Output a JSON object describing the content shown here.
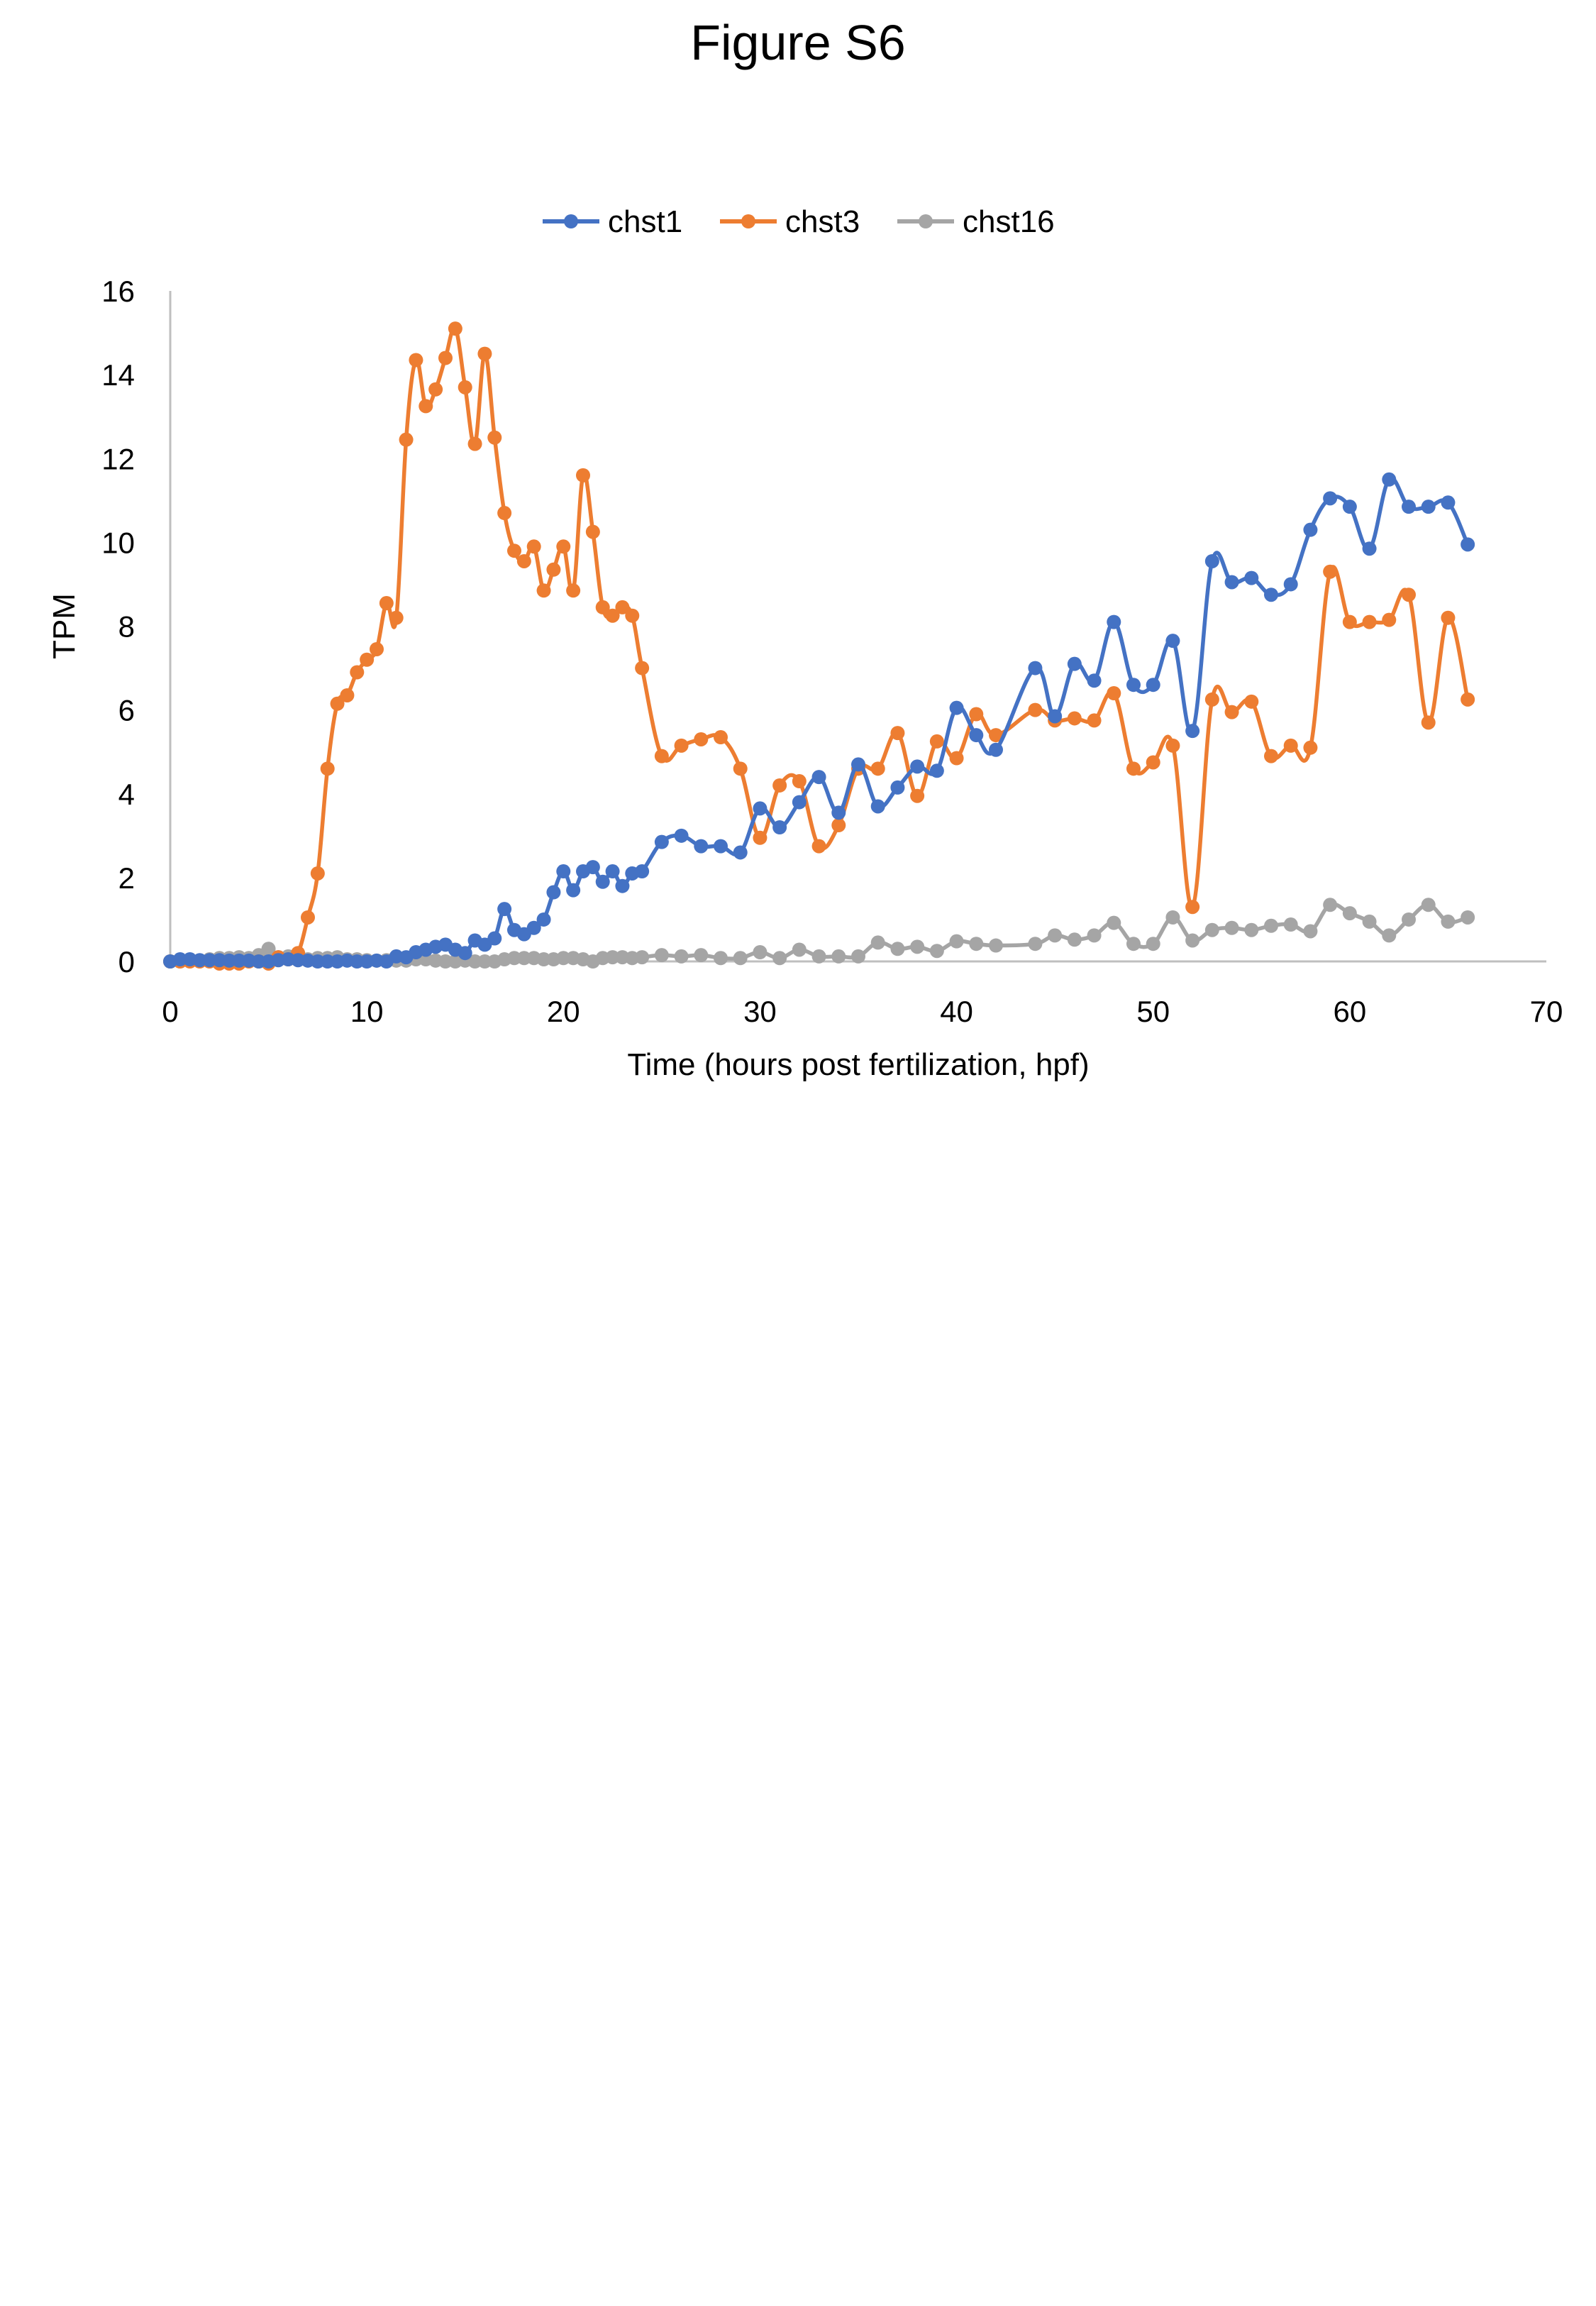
{
  "figure": {
    "title": "Figure S6"
  },
  "chart_data": {
    "type": "line",
    "title": "",
    "xlabel": "Time (hours post fertilization, hpf)",
    "ylabel": "TPM",
    "xlim": [
      0,
      70
    ],
    "ylim": [
      0,
      16
    ],
    "xticks": [
      0,
      10,
      20,
      30,
      40,
      50,
      60,
      70
    ],
    "yticks": [
      0,
      2,
      4,
      6,
      8,
      10,
      12,
      14,
      16
    ],
    "grid": false,
    "legend_position": "top-center",
    "series": [
      {
        "name": "chst1",
        "color": "#4472C4",
        "x": [
          0,
          0.5,
          1,
          1.5,
          2,
          2.5,
          3,
          3.5,
          4,
          4.5,
          5,
          5.5,
          6,
          6.5,
          7,
          7.5,
          8,
          8.5,
          9,
          9.5,
          10,
          10.5,
          11,
          11.5,
          12,
          12.5,
          13,
          13.5,
          14,
          14.5,
          15,
          15.5,
          16,
          16.5,
          17,
          17.5,
          18,
          18.5,
          19,
          19.5,
          20,
          20.5,
          21,
          21.5,
          22,
          22.5,
          23,
          23.5,
          24,
          25,
          26,
          27,
          28,
          29,
          30,
          31,
          32,
          33,
          34,
          35,
          36,
          37,
          38,
          39,
          40,
          41,
          42,
          44,
          45,
          46,
          47,
          48,
          49,
          50,
          51,
          52,
          53,
          54,
          55,
          56,
          57,
          58,
          59,
          60,
          61,
          62,
          63,
          64,
          65,
          66
        ],
        "values": [
          0,
          0.05,
          0.05,
          0.03,
          0.03,
          0.03,
          0.02,
          0.02,
          0.02,
          0,
          0,
          0.03,
          0.05,
          0.03,
          0.02,
          0,
          0,
          0,
          0.02,
          0,
          0,
          0.02,
          0,
          0.12,
          0.1,
          0.22,
          0.28,
          0.35,
          0.4,
          0.28,
          0.2,
          0.5,
          0.4,
          0.55,
          1.25,
          0.75,
          0.65,
          0.8,
          1.0,
          1.65,
          2.15,
          1.7,
          2.15,
          2.25,
          1.9,
          2.15,
          1.8,
          2.1,
          2.15,
          2.85,
          3.0,
          2.75,
          2.75,
          2.6,
          3.65,
          3.2,
          3.8,
          4.4,
          3.55,
          4.7,
          3.7,
          4.15,
          4.65,
          4.55,
          6.05,
          5.4,
          5.05,
          7.0,
          5.85,
          7.1,
          6.7,
          8.1,
          6.6,
          6.6,
          7.65,
          5.5,
          9.55,
          9.05,
          9.15,
          8.75,
          9.0,
          10.3,
          11.05,
          10.85,
          9.85,
          11.5,
          10.85,
          10.85,
          10.95,
          9.95
        ]
      },
      {
        "name": "chst3",
        "color": "#ED7D31",
        "x": [
          0,
          0.5,
          1,
          1.5,
          2,
          2.5,
          3,
          3.5,
          4,
          4.5,
          5,
          5.5,
          6,
          6.5,
          7,
          7.5,
          8,
          8.5,
          9,
          9.5,
          10,
          10.5,
          11,
          11.5,
          12,
          12.5,
          13,
          13.5,
          14,
          14.5,
          15,
          15.5,
          16,
          16.5,
          17,
          17.5,
          18,
          18.5,
          19,
          19.5,
          20,
          20.5,
          21,
          21.5,
          22,
          22.5,
          23,
          23.5,
          24,
          25,
          26,
          27,
          28,
          29,
          30,
          31,
          32,
          33,
          34,
          35,
          36,
          37,
          38,
          39,
          40,
          41,
          42,
          44,
          45,
          46,
          47,
          48,
          49,
          50,
          51,
          52,
          53,
          54,
          55,
          56,
          57,
          58,
          59,
          60,
          61,
          62,
          63,
          64,
          65,
          66
        ],
        "values": [
          0,
          0,
          0,
          0,
          0,
          -0.05,
          -0.05,
          -0.05,
          0,
          0,
          -0.05,
          0.1,
          0.05,
          0.2,
          1.05,
          2.1,
          4.6,
          6.15,
          6.35,
          6.9,
          7.2,
          7.45,
          8.55,
          8.2,
          12.45,
          14.35,
          13.25,
          13.65,
          14.4,
          15.1,
          13.7,
          12.35,
          14.5,
          12.5,
          10.7,
          9.8,
          9.55,
          9.9,
          8.85,
          9.35,
          9.9,
          8.85,
          11.6,
          10.25,
          8.45,
          8.25,
          8.45,
          8.25,
          7.0,
          4.9,
          5.15,
          5.3,
          5.35,
          4.6,
          2.95,
          4.2,
          4.3,
          2.75,
          3.25,
          4.6,
          4.6,
          5.45,
          3.95,
          5.25,
          4.85,
          5.9,
          5.4,
          6.0,
          5.75,
          5.8,
          5.75,
          6.4,
          4.6,
          4.75,
          5.15,
          1.3,
          6.25,
          5.95,
          6.2,
          4.9,
          5.15,
          5.1,
          9.3,
          8.1,
          8.1,
          8.15,
          8.75,
          5.7,
          8.2,
          6.25
        ]
      },
      {
        "name": "chst16",
        "color": "#A5A5A5",
        "x": [
          0,
          0.5,
          1,
          1.5,
          2,
          2.5,
          3,
          3.5,
          4,
          4.5,
          5,
          5.5,
          6,
          6.5,
          7,
          7.5,
          8,
          8.5,
          9,
          9.5,
          10,
          10.5,
          11,
          11.5,
          12,
          12.5,
          13,
          13.5,
          14,
          14.5,
          15,
          15.5,
          16,
          16.5,
          17,
          17.5,
          18,
          18.5,
          19,
          19.5,
          20,
          20.5,
          21,
          21.5,
          22,
          22.5,
          23,
          23.5,
          24,
          25,
          26,
          27,
          28,
          29,
          30,
          31,
          32,
          33,
          34,
          35,
          36,
          37,
          38,
          39,
          40,
          41,
          42,
          44,
          45,
          46,
          47,
          48,
          49,
          50,
          51,
          52,
          53,
          54,
          55,
          56,
          57,
          58,
          59,
          60,
          61,
          62,
          63,
          64,
          65,
          66
        ],
        "values": [
          0,
          0,
          0.02,
          0.02,
          0.05,
          0.08,
          0.08,
          0.1,
          0.08,
          0.15,
          0.3,
          0.1,
          0.12,
          0.12,
          0.05,
          0.08,
          0.08,
          0.1,
          0.05,
          0.05,
          0.03,
          0.02,
          0.03,
          0.02,
          0.02,
          0.05,
          0.05,
          0.02,
          0,
          0,
          0.02,
          0,
          0,
          0,
          0.05,
          0.08,
          0.08,
          0.08,
          0.05,
          0.05,
          0.08,
          0.08,
          0.05,
          0,
          0.08,
          0.1,
          0.1,
          0.08,
          0.1,
          0.15,
          0.12,
          0.15,
          0.08,
          0.08,
          0.22,
          0.08,
          0.28,
          0.12,
          0.12,
          0.12,
          0.45,
          0.3,
          0.35,
          0.25,
          0.48,
          0.42,
          0.38,
          0.42,
          0.62,
          0.52,
          0.62,
          0.92,
          0.42,
          0.42,
          1.05,
          0.5,
          0.75,
          0.8,
          0.75,
          0.85,
          0.88,
          0.72,
          1.35,
          1.15,
          0.95,
          0.62,
          1.0,
          1.35,
          0.95,
          1.05
        ]
      }
    ]
  }
}
